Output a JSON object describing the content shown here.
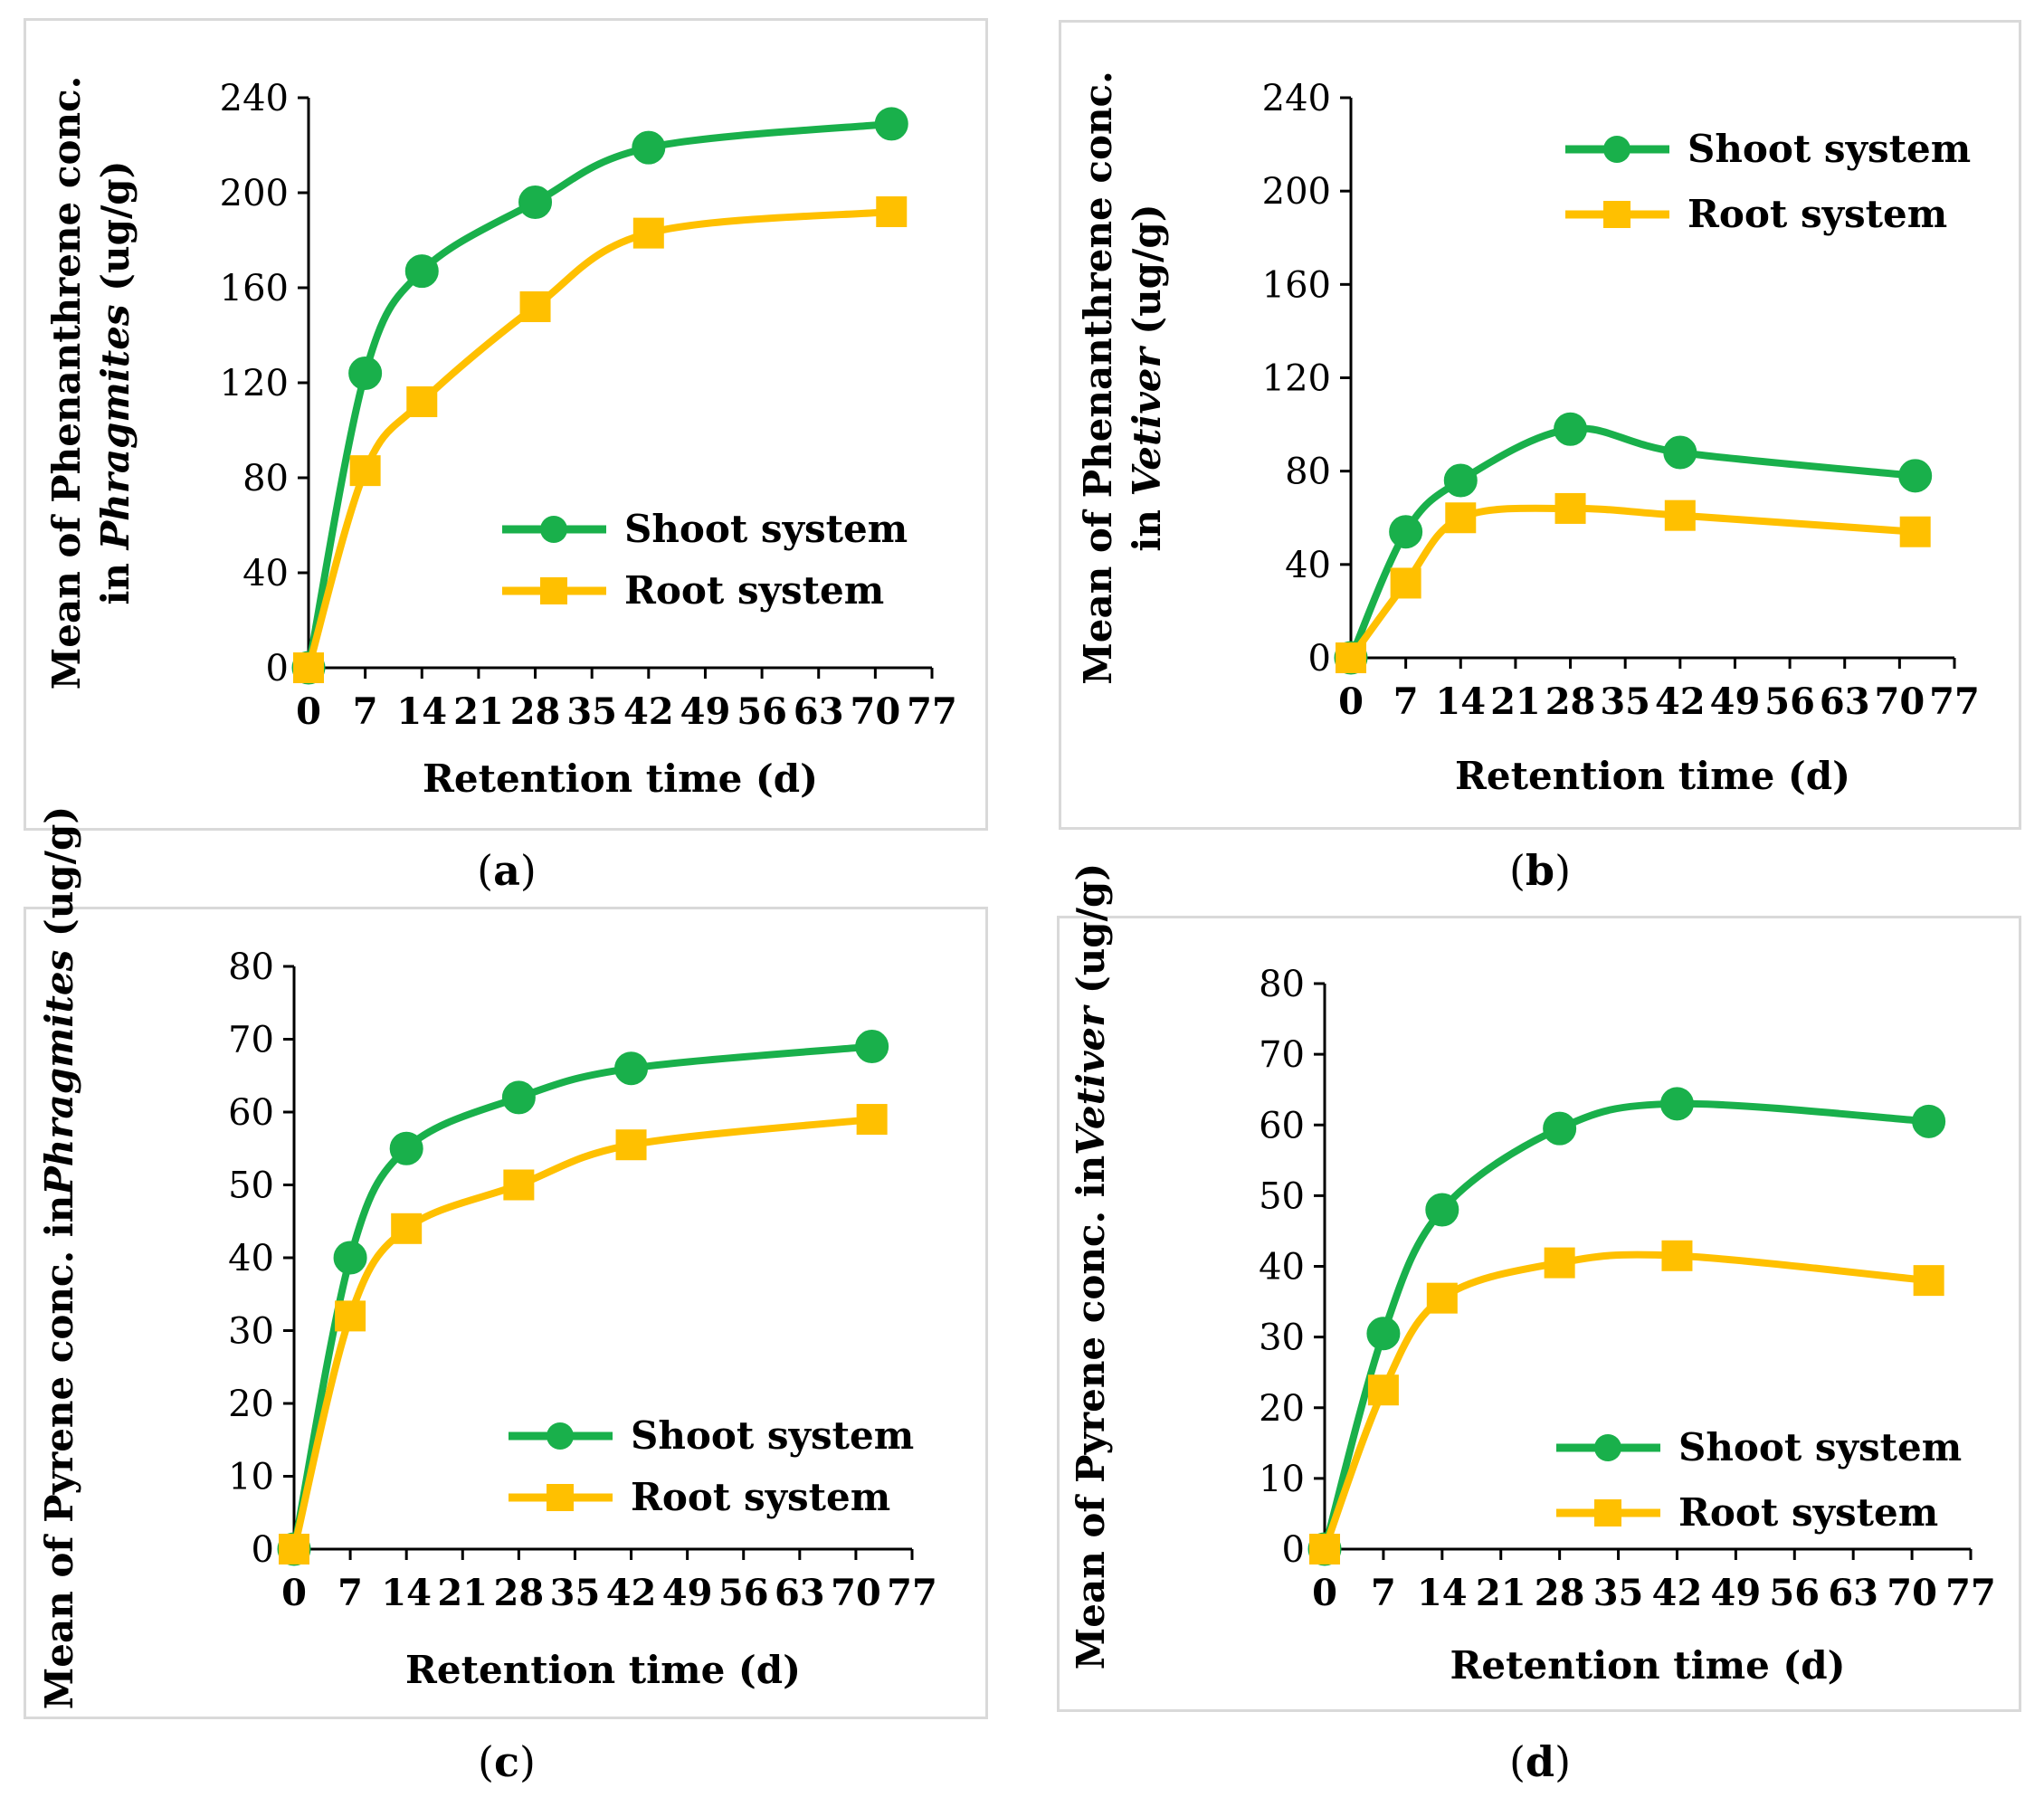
{
  "series_colors": {
    "shoot": "#19b04b",
    "root": "#ffc000"
  },
  "chart_data": [
    {
      "type": "line",
      "panel": "a",
      "caption": {
        "open": "(",
        "letter": "a",
        "close": ")"
      },
      "ylabel": {
        "line1": "Mean of Phenanthrene conc.",
        "line2_pre": "in ",
        "line2_italic": "Phragmites",
        "line2_post": " (ug/g)"
      },
      "xlabel": "Retention time (d)",
      "x_ticks": [
        "0",
        "7",
        "14",
        "21",
        "28",
        "35",
        "42",
        "49",
        "56",
        "63",
        "70",
        "77"
      ],
      "y_ticks": [
        "0",
        "40",
        "80",
        "120",
        "160",
        "200",
        "240"
      ],
      "xlim": [
        0,
        77
      ],
      "ylim": [
        0,
        240
      ],
      "legend_position": "bottom-right",
      "series": [
        {
          "name": "Shoot system",
          "marker": "circle",
          "x": [
            0,
            7,
            14,
            28,
            42,
            72
          ],
          "y": [
            0,
            124,
            167,
            196,
            219,
            229
          ]
        },
        {
          "name": "Root system",
          "marker": "square",
          "x": [
            0,
            7,
            14,
            28,
            42,
            72
          ],
          "y": [
            0,
            83,
            112,
            152,
            183,
            192
          ]
        }
      ]
    },
    {
      "type": "line",
      "panel": "b",
      "caption": {
        "open": "(",
        "letter": "b",
        "close": ")"
      },
      "ylabel": {
        "line1": "Mean of Phenanthrene conc.",
        "line2_pre": "in ",
        "line2_italic": "Vetiver",
        "line2_post": " (ug/g)"
      },
      "xlabel": "Retention time (d)",
      "x_ticks": [
        "0",
        "7",
        "14",
        "21",
        "28",
        "35",
        "42",
        "49",
        "56",
        "63",
        "70",
        "77"
      ],
      "y_ticks": [
        "0",
        "40",
        "80",
        "120",
        "160",
        "200",
        "240"
      ],
      "xlim": [
        0,
        77
      ],
      "ylim": [
        0,
        240
      ],
      "legend_position": "top-right",
      "series": [
        {
          "name": "Shoot system",
          "marker": "circle",
          "x": [
            0,
            7,
            14,
            28,
            42,
            72
          ],
          "y": [
            0,
            54,
            76,
            98,
            88,
            78
          ]
        },
        {
          "name": "Root system",
          "marker": "square",
          "x": [
            0,
            7,
            14,
            28,
            42,
            72
          ],
          "y": [
            0,
            32,
            60,
            64,
            61,
            54
          ]
        }
      ]
    },
    {
      "type": "line",
      "panel": "c",
      "caption": {
        "open": "(",
        "letter": "c",
        "close": ")"
      },
      "ylabel": {
        "line1": "Mean of Pyrene conc. in",
        "line2_pre": "",
        "line2_italic": "Phragmites",
        "line2_post": " (ug/g)"
      },
      "xlabel": "Retention time (d)",
      "x_ticks": [
        "0",
        "7",
        "14",
        "21",
        "28",
        "35",
        "42",
        "49",
        "56",
        "63",
        "70",
        "77"
      ],
      "y_ticks": [
        "0",
        "10",
        "20",
        "30",
        "40",
        "50",
        "60",
        "70",
        "80"
      ],
      "xlim": [
        0,
        77
      ],
      "ylim": [
        0,
        80
      ],
      "legend_position": "bottom-right",
      "series": [
        {
          "name": "Shoot system",
          "marker": "circle",
          "x": [
            0,
            7,
            14,
            28,
            42,
            72
          ],
          "y": [
            0,
            40,
            55,
            62,
            66,
            69
          ]
        },
        {
          "name": "Root system",
          "marker": "square",
          "x": [
            0,
            7,
            14,
            28,
            42,
            72
          ],
          "y": [
            0,
            32,
            44,
            50,
            55.5,
            59
          ]
        }
      ]
    },
    {
      "type": "line",
      "panel": "d",
      "caption": {
        "open": "(",
        "letter": "d",
        "close": ")"
      },
      "ylabel": {
        "line1": "Mean of Pyrene conc. in",
        "line2_pre": "",
        "line2_italic": "Vetiver",
        "line2_post": " (ug/g)"
      },
      "xlabel": "Retention time (d)",
      "x_ticks": [
        "0",
        "7",
        "14",
        "21",
        "28",
        "35",
        "42",
        "49",
        "56",
        "63",
        "70",
        "77"
      ],
      "y_ticks": [
        "0",
        "10",
        "20",
        "30",
        "40",
        "50",
        "60",
        "70",
        "80"
      ],
      "xlim": [
        0,
        77
      ],
      "ylim": [
        0,
        80
      ],
      "legend_position": "bottom-right",
      "series": [
        {
          "name": "Shoot system",
          "marker": "circle",
          "x": [
            0,
            7,
            14,
            28,
            42,
            72
          ],
          "y": [
            0,
            30.5,
            48,
            59.5,
            63,
            60.5
          ]
        },
        {
          "name": "Root system",
          "marker": "square",
          "x": [
            0,
            7,
            14,
            28,
            42,
            72
          ],
          "y": [
            0,
            22.5,
            35.5,
            40.5,
            41.5,
            38
          ]
        }
      ]
    }
  ]
}
